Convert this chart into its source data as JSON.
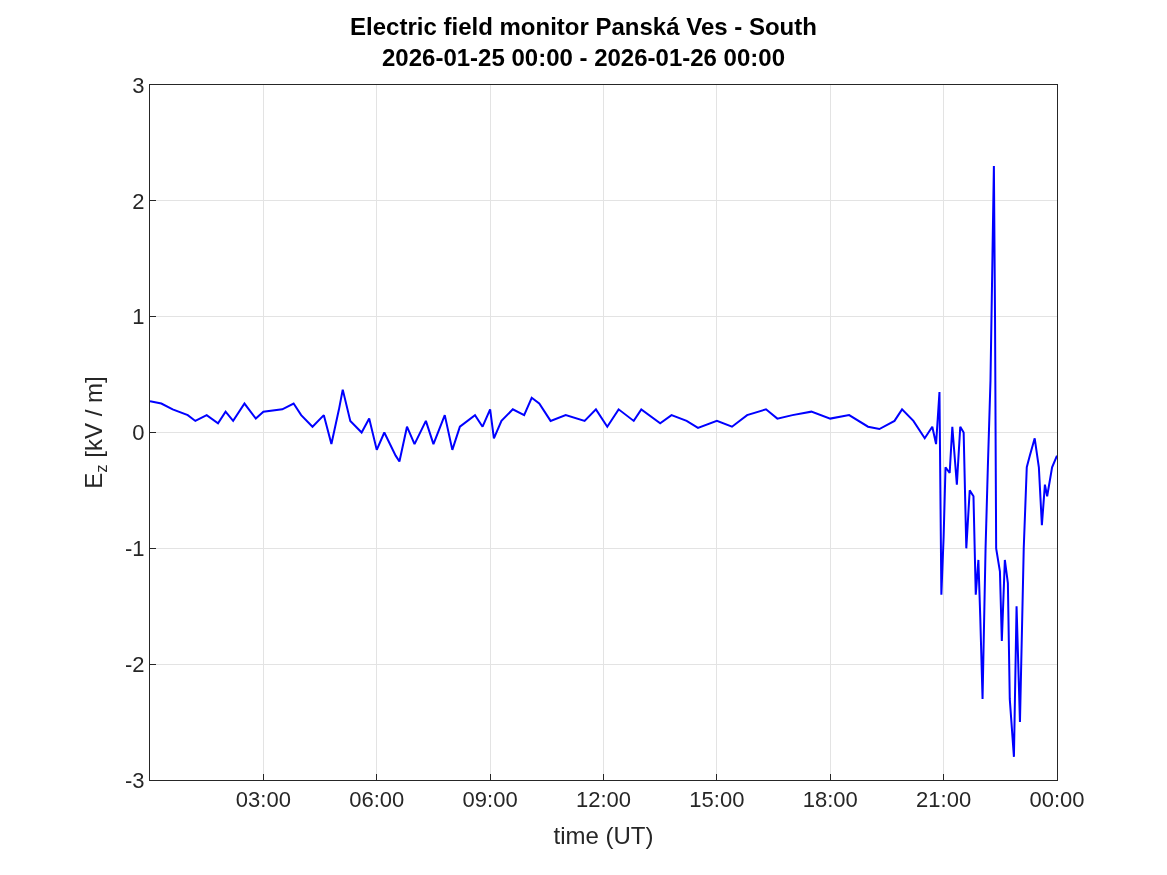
{
  "chart_data": {
    "type": "line",
    "title": "Electric field monitor Panská Ves - South\n2026-01-25 00:00 - 2026-01-26 00:00",
    "xlabel": "time (UT)",
    "ylabel": "E$_{z}$ [kV / m]",
    "x": [
      0,
      0.3,
      0.6,
      1,
      1.2,
      1.5,
      1.8,
      2,
      2.2,
      2.5,
      2.8,
      3,
      3.5,
      3.8,
      4,
      4.3,
      4.6,
      4.8,
      5,
      5.1,
      5.3,
      5.6,
      5.8,
      6,
      6.2,
      6.5,
      6.6,
      6.8,
      7,
      7.3,
      7.5,
      7.8,
      8,
      8.2,
      8.6,
      8.8,
      9,
      9.1,
      9.3,
      9.6,
      9.9,
      10.1,
      10.3,
      10.6,
      11,
      11.5,
      11.8,
      12.1,
      12.4,
      12.8,
      13,
      13.5,
      13.8,
      14.2,
      14.5,
      15,
      15.4,
      15.8,
      16.3,
      16.6,
      17,
      17.5,
      18,
      18.5,
      19,
      19.3,
      19.7,
      19.9,
      20.2,
      20.5,
      20.7,
      20.8,
      20.89,
      20.94,
      21.0,
      21.05,
      21.16,
      21.23,
      21.35,
      21.44,
      21.53,
      21.6,
      21.69,
      21.79,
      21.85,
      21.92,
      21.97,
      22.03,
      22.11,
      22.17,
      22.24,
      22.33,
      22.36,
      22.39,
      22.49,
      22.54,
      22.62,
      22.7,
      22.75,
      22.86,
      22.93,
      23.02,
      23.12,
      23.2,
      23.28,
      23.41,
      23.52,
      23.6,
      23.68,
      23.74,
      23.87,
      24.0
    ],
    "series": [
      {
        "color": "#0000ff",
        "values": [
          0.27,
          0.25,
          0.2,
          0.15,
          0.1,
          0.15,
          0.08,
          0.18,
          0.1,
          0.25,
          0.12,
          0.18,
          0.2,
          0.25,
          0.15,
          0.05,
          0.15,
          -0.1,
          0.2,
          0.37,
          0.1,
          0.0,
          0.12,
          -0.15,
          0.0,
          -0.2,
          -0.25,
          0.05,
          -0.1,
          0.1,
          -0.1,
          0.15,
          -0.15,
          0.05,
          0.15,
          0.05,
          0.2,
          -0.05,
          0.1,
          0.2,
          0.15,
          0.3,
          0.25,
          0.1,
          0.15,
          0.1,
          0.2,
          0.05,
          0.2,
          0.1,
          0.2,
          0.08,
          0.15,
          0.1,
          0.04,
          0.1,
          0.05,
          0.15,
          0.2,
          0.12,
          0.15,
          0.18,
          0.12,
          0.15,
          0.05,
          0.03,
          0.1,
          0.2,
          0.1,
          -0.05,
          0.05,
          -0.1,
          0.35,
          -1.4,
          -0.9,
          -0.3,
          -0.35,
          0.05,
          -0.45,
          0.05,
          0.0,
          -1.0,
          -0.5,
          -0.55,
          -1.4,
          -1.1,
          -1.6,
          -2.3,
          -1.0,
          -0.3,
          0.45,
          2.3,
          1.0,
          -1.0,
          -1.2,
          -1.8,
          -1.1,
          -1.3,
          -2.3,
          -2.8,
          -1.5,
          -2.5,
          -1.0,
          -0.3,
          -0.2,
          -0.05,
          -0.3,
          -0.8,
          -0.45,
          -0.55,
          -0.3,
          -0.2
        ]
      }
    ],
    "xlim": [
      0,
      24
    ],
    "xticks": [
      {
        "value": 3,
        "label": "03:00"
      },
      {
        "value": 6,
        "label": "06:00"
      },
      {
        "value": 9,
        "label": "09:00"
      },
      {
        "value": 12,
        "label": "12:00"
      },
      {
        "value": 15,
        "label": "15:00"
      },
      {
        "value": 18,
        "label": "18:00"
      },
      {
        "value": 21,
        "label": "21:00"
      },
      {
        "value": 24,
        "label": "00:00"
      }
    ],
    "ylim": [
      -3,
      3
    ],
    "yticks": [
      -3,
      -2,
      -1,
      0,
      1,
      2,
      3
    ],
    "grid": true,
    "marker": "none",
    "line_style": "solid"
  }
}
